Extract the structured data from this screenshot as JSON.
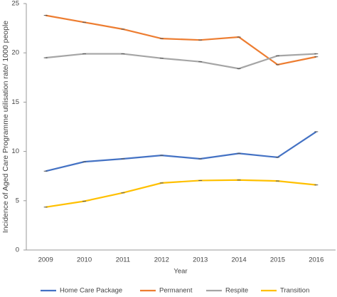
{
  "chart_data": {
    "type": "line",
    "y_label": "Incidence of Aged Care Programme utilisation rate/ 1000 people",
    "x_label": "Year",
    "categories": [
      "2009",
      "2010",
      "2011",
      "2012",
      "2013",
      "2014",
      "2015",
      "2016"
    ],
    "series": [
      {
        "name": "Home Care Package",
        "color": "#4472c4",
        "values": [
          8.0,
          8.95,
          9.25,
          9.6,
          9.25,
          9.8,
          9.4,
          12.0
        ]
      },
      {
        "name": "Permanent",
        "color": "#ed7d31",
        "values": [
          23.8,
          23.1,
          22.4,
          21.45,
          21.3,
          21.6,
          18.8,
          19.6
        ]
      },
      {
        "name": "Respite",
        "color": "#a5a5a5",
        "values": [
          19.5,
          19.9,
          19.9,
          19.45,
          19.1,
          18.4,
          19.7,
          19.9
        ]
      },
      {
        "name": "Transition",
        "color": "#ffc000",
        "values": [
          4.35,
          4.95,
          5.8,
          6.8,
          7.05,
          7.1,
          7.0,
          6.6
        ]
      }
    ],
    "ylim": [
      0,
      25
    ],
    "yticks": [
      0,
      5,
      10,
      15,
      20,
      25
    ],
    "grid": false,
    "legend": "bottom"
  }
}
